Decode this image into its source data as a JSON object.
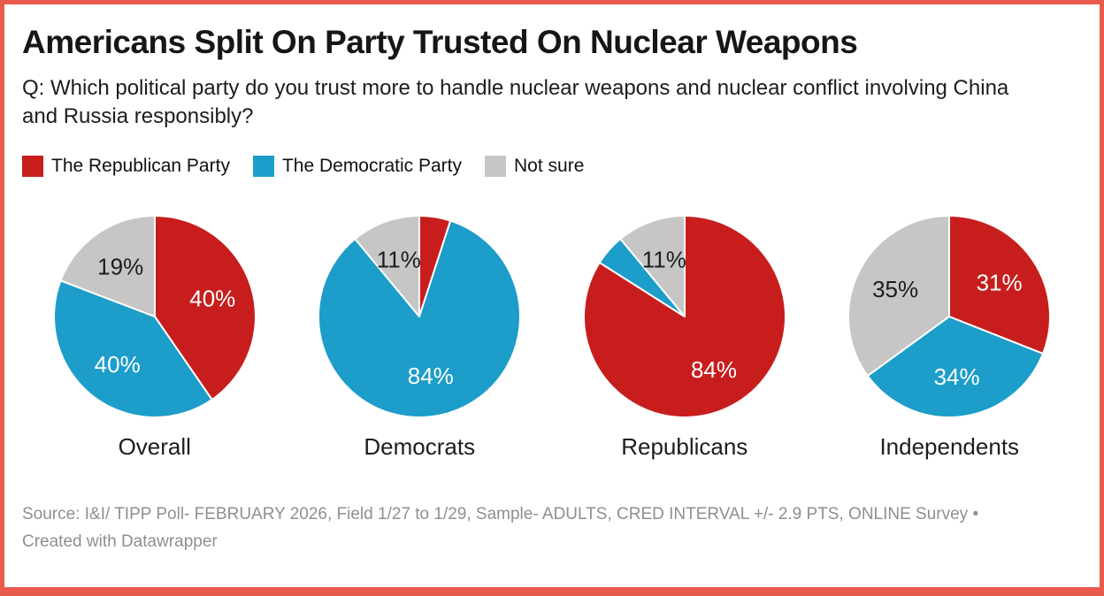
{
  "frame": {
    "border_color": "#e75a4d",
    "background": "#ffffff"
  },
  "header": {
    "title": "Americans Split On Party Trusted On Nuclear Weapons",
    "subtitle": "Q: Which political party do you trust more to handle nuclear weapons and nuclear conflict involving China and Russia responsibly?"
  },
  "legend": {
    "items": [
      {
        "label": "The Republican Party",
        "color": "#c71e1d"
      },
      {
        "label": "The Democratic Party",
        "color": "#1d9dc9"
      },
      {
        "label": "Not sure",
        "color": "#c6c6c6"
      }
    ]
  },
  "chart_data": {
    "type": "pie",
    "title": "Americans Split On Party Trusted On Nuclear Weapons",
    "question": "Q: Which political party do you trust more to handle nuclear weapons and nuclear conflict involving China and Russia responsibly?",
    "slice_names": [
      "The Republican Party",
      "The Democratic Party",
      "Not sure"
    ],
    "colors": [
      "#c71e1d",
      "#1d9dc9",
      "#c6c6c6"
    ],
    "label_text_colors": [
      "#ffffff",
      "#ffffff",
      "#1d1d1d"
    ],
    "diameter": 232,
    "label_radius": 0.6,
    "start_angle_deg": 0,
    "direction": "clockwise",
    "notes": "Unlabeled thin slices in Democrats and Republicans pies estimated at 5% from slice geometry",
    "pies": [
      {
        "category": "Overall",
        "values": [
          40,
          40,
          19
        ],
        "labels": [
          "40%",
          "40%",
          "19%"
        ]
      },
      {
        "category": "Democrats",
        "values": [
          5,
          84,
          11
        ],
        "labels": [
          "",
          "84%",
          "11%"
        ]
      },
      {
        "category": "Republicans",
        "values": [
          84,
          5,
          11
        ],
        "labels": [
          "84%",
          "",
          "11%"
        ]
      },
      {
        "category": "Independents",
        "values": [
          31,
          34,
          35
        ],
        "labels": [
          "31%",
          "34%",
          "35%"
        ]
      }
    ]
  },
  "footer": {
    "source": "Source: I&I/ TIPP Poll- FEBRUARY 2026, Field 1/27 to 1/29, Sample- ADULTS, CRED INTERVAL +/- 2.9 PTS, ONLINE Survey •",
    "attribution": "Created with Datawrapper"
  }
}
